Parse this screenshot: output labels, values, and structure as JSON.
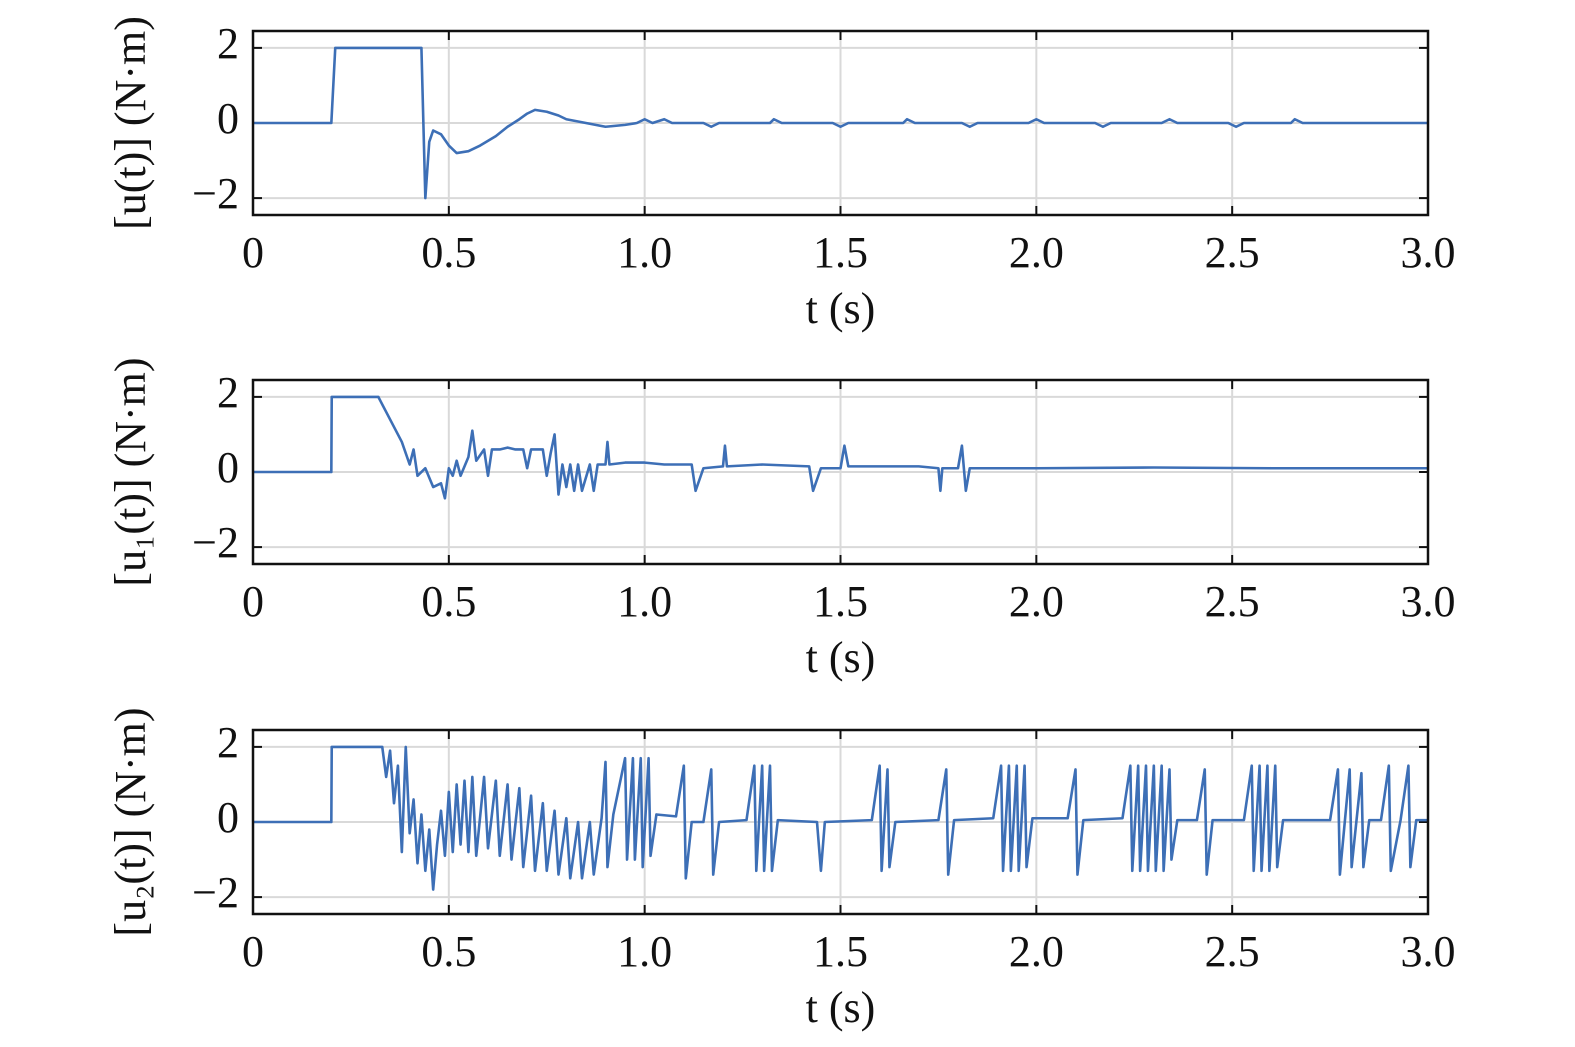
{
  "chart_data": [
    {
      "type": "line",
      "ylabel": "[u(t)] (N·m)",
      "xlabel": "t (s)",
      "color": "#3d6fb6",
      "grid": true,
      "xlim": [
        0,
        3
      ],
      "ylim": [
        -2.45,
        2.45
      ],
      "xticks": [
        0,
        0.5,
        {
          "value": 1,
          "label": "1.0"
        },
        1.5,
        {
          "value": 2,
          "label": "2.0"
        },
        2.5,
        {
          "value": 3,
          "label": "3.0"
        }
      ],
      "yticks": [
        {
          "value": -2,
          "label": "−2"
        },
        0,
        2
      ],
      "x": [
        0,
        0.2,
        0.21,
        0.43,
        0.44,
        0.45,
        0.46,
        0.48,
        0.5,
        0.52,
        0.55,
        0.58,
        0.62,
        0.65,
        0.68,
        0.7,
        0.72,
        0.75,
        0.78,
        0.8,
        0.85,
        0.9,
        0.95,
        0.98,
        1.0,
        1.02,
        1.05,
        1.07,
        1.15,
        1.17,
        1.19,
        1.32,
        1.33,
        1.35,
        1.48,
        1.5,
        1.52,
        1.66,
        1.67,
        1.69,
        1.81,
        1.83,
        1.85,
        1.98,
        2.0,
        2.02,
        2.15,
        2.17,
        2.19,
        2.32,
        2.34,
        2.36,
        2.49,
        2.51,
        2.53,
        2.65,
        2.66,
        2.68,
        3.0
      ],
      "values": [
        0,
        0,
        2,
        2,
        -2,
        -0.5,
        -0.2,
        -0.3,
        -0.6,
        -0.8,
        -0.75,
        -0.6,
        -0.35,
        -0.1,
        0.1,
        0.25,
        0.35,
        0.3,
        0.2,
        0.1,
        0,
        -0.1,
        -0.05,
        0,
        0.1,
        0,
        0.1,
        0,
        0,
        -0.1,
        0,
        0,
        0.1,
        0,
        0,
        -0.1,
        0,
        0,
        0.1,
        0,
        0,
        -0.1,
        0,
        0,
        0.1,
        0,
        0,
        -0.1,
        0,
        0,
        0.1,
        0,
        0,
        -0.1,
        0,
        0,
        0.1,
        0,
        0
      ]
    },
    {
      "type": "line",
      "ylabel": "[u₁(t)] (N·m)",
      "xlabel": "t (s)",
      "color": "#3d6fb6",
      "grid": true,
      "xlim": [
        0,
        3
      ],
      "ylim": [
        -2.45,
        2.45
      ],
      "xticks": [
        0,
        0.5,
        {
          "value": 1,
          "label": "1.0"
        },
        1.5,
        {
          "value": 2,
          "label": "2.0"
        },
        2.5,
        {
          "value": 3,
          "label": "3.0"
        }
      ],
      "yticks": [
        {
          "value": -2,
          "label": "−2"
        },
        0,
        2
      ],
      "x": [
        0,
        0.2,
        0.201,
        0.32,
        0.34,
        0.36,
        0.38,
        0.4,
        0.41,
        0.42,
        0.44,
        0.46,
        0.48,
        0.49,
        0.5,
        0.51,
        0.52,
        0.53,
        0.55,
        0.56,
        0.57,
        0.59,
        0.6,
        0.61,
        0.63,
        0.65,
        0.67,
        0.69,
        0.7,
        0.71,
        0.74,
        0.75,
        0.76,
        0.77,
        0.78,
        0.79,
        0.8,
        0.81,
        0.82,
        0.83,
        0.84,
        0.86,
        0.87,
        0.88,
        0.9,
        0.905,
        0.91,
        0.95,
        1.0,
        1.05,
        1.12,
        1.13,
        1.15,
        1.2,
        1.205,
        1.21,
        1.3,
        1.42,
        1.43,
        1.45,
        1.5,
        1.51,
        1.52,
        1.6,
        1.7,
        1.75,
        1.755,
        1.76,
        1.8,
        1.81,
        1.82,
        1.83,
        2.0,
        2.3,
        2.6,
        3.0
      ],
      "values": [
        0,
        0,
        2,
        2,
        1.6,
        1.2,
        0.8,
        0.2,
        0.6,
        -0.1,
        0.1,
        -0.4,
        -0.3,
        -0.7,
        0.1,
        -0.1,
        0.3,
        -0.1,
        0.4,
        1.1,
        0.3,
        0.6,
        -0.1,
        0.6,
        0.6,
        0.65,
        0.6,
        0.6,
        0.1,
        0.6,
        0.6,
        -0.1,
        0.5,
        1.0,
        -0.6,
        0.2,
        -0.4,
        0.2,
        -0.5,
        0.2,
        -0.5,
        0.2,
        -0.5,
        0.2,
        0.2,
        0.8,
        0.2,
        0.25,
        0.25,
        0.2,
        0.2,
        -0.5,
        0.1,
        0.15,
        0.7,
        0.15,
        0.2,
        0.15,
        -0.5,
        0.1,
        0.1,
        0.7,
        0.15,
        0.15,
        0.15,
        0.1,
        -0.5,
        0.1,
        0.1,
        0.7,
        -0.5,
        0.1,
        0.1,
        0.12,
        0.1,
        0.1
      ]
    },
    {
      "type": "line",
      "ylabel": "[u₂(t)] (N·m)",
      "xlabel": "t (s)",
      "color": "#3d6fb6",
      "grid": true,
      "xlim": [
        0,
        3
      ],
      "ylim": [
        -2.45,
        2.45
      ],
      "xticks": [
        0,
        0.5,
        {
          "value": 1,
          "label": "1.0"
        },
        1.5,
        {
          "value": 2,
          "label": "2.0"
        },
        2.5,
        {
          "value": 3,
          "label": "3.0"
        }
      ],
      "yticks": [
        {
          "value": -2,
          "label": "−2"
        },
        0,
        2
      ],
      "x": [
        0,
        0.2,
        0.201,
        0.33,
        0.34,
        0.35,
        0.36,
        0.37,
        0.38,
        0.39,
        0.4,
        0.41,
        0.42,
        0.43,
        0.44,
        0.45,
        0.46,
        0.47,
        0.48,
        0.49,
        0.5,
        0.51,
        0.52,
        0.53,
        0.54,
        0.55,
        0.56,
        0.57,
        0.59,
        0.6,
        0.62,
        0.63,
        0.65,
        0.66,
        0.68,
        0.69,
        0.71,
        0.72,
        0.74,
        0.75,
        0.77,
        0.78,
        0.8,
        0.81,
        0.83,
        0.84,
        0.86,
        0.87,
        0.89,
        0.9,
        0.905,
        0.92,
        0.95,
        0.955,
        0.97,
        0.975,
        0.99,
        0.995,
        1.01,
        1.015,
        1.03,
        1.08,
        1.1,
        1.105,
        1.12,
        1.15,
        1.17,
        1.175,
        1.19,
        1.26,
        1.28,
        1.285,
        1.3,
        1.305,
        1.32,
        1.325,
        1.34,
        1.44,
        1.45,
        1.46,
        1.58,
        1.6,
        1.605,
        1.62,
        1.625,
        1.64,
        1.75,
        1.77,
        1.775,
        1.79,
        1.89,
        1.91,
        1.915,
        1.93,
        1.935,
        1.95,
        1.955,
        1.97,
        1.975,
        1.99,
        2.08,
        2.1,
        2.105,
        2.12,
        2.22,
        2.24,
        2.245,
        2.26,
        2.265,
        2.28,
        2.285,
        2.3,
        2.305,
        2.32,
        2.325,
        2.34,
        2.345,
        2.36,
        2.41,
        2.43,
        2.435,
        2.45,
        2.53,
        2.55,
        2.555,
        2.57,
        2.575,
        2.59,
        2.595,
        2.61,
        2.615,
        2.63,
        2.75,
        2.77,
        2.775,
        2.8,
        2.805,
        2.83,
        2.835,
        2.85,
        2.88,
        2.9,
        2.905,
        2.93,
        2.95,
        2.955,
        2.97,
        3.0
      ],
      "values": [
        0,
        0,
        2,
        2,
        1.2,
        1.9,
        0.5,
        1.5,
        -0.8,
        2,
        -0.3,
        0.6,
        -1.1,
        0.2,
        -1.3,
        -0.2,
        -1.8,
        -0.6,
        0.3,
        -0.9,
        0.8,
        -0.8,
        1.0,
        -0.6,
        1.1,
        -0.8,
        1.2,
        -0.9,
        1.2,
        -0.7,
        1.1,
        -0.9,
        1.0,
        -1.0,
        0.9,
        -1.2,
        0.7,
        -1.3,
        0.5,
        -1.3,
        0.3,
        -1.4,
        0.1,
        -1.5,
        0,
        -1.5,
        0,
        -1.4,
        0.1,
        1.6,
        -1.2,
        0.2,
        1.7,
        -1.0,
        1.7,
        -1.0,
        1.7,
        -1.2,
        1.7,
        -0.9,
        0.2,
        0.15,
        1.5,
        -1.5,
        0,
        0,
        1.4,
        -1.4,
        0,
        0.05,
        1.5,
        -1.3,
        1.5,
        -1.3,
        1.5,
        -1.3,
        0.05,
        0,
        -1.3,
        0,
        0.05,
        1.5,
        -1.3,
        1.4,
        -1.2,
        0,
        0.05,
        1.4,
        -1.4,
        0.05,
        0.1,
        1.5,
        -1.3,
        1.5,
        -1.3,
        1.5,
        -1.3,
        1.5,
        -1.2,
        0.1,
        0.1,
        1.4,
        -1.4,
        0.05,
        0.1,
        1.5,
        -1.3,
        1.5,
        -1.3,
        1.5,
        -1.3,
        1.5,
        -1.3,
        1.5,
        -1.3,
        1.4,
        -1.0,
        0.05,
        0.05,
        1.4,
        -1.4,
        0.05,
        0.05,
        1.5,
        -1.3,
        1.5,
        -1.3,
        1.5,
        -1.3,
        1.5,
        -1.2,
        0.05,
        0.05,
        1.4,
        -1.4,
        1.4,
        -1.2,
        1.3,
        -1.2,
        0.05,
        0.05,
        1.5,
        -1.3,
        0.05,
        1.5,
        -1.2,
        0.05,
        0.05
      ]
    }
  ]
}
